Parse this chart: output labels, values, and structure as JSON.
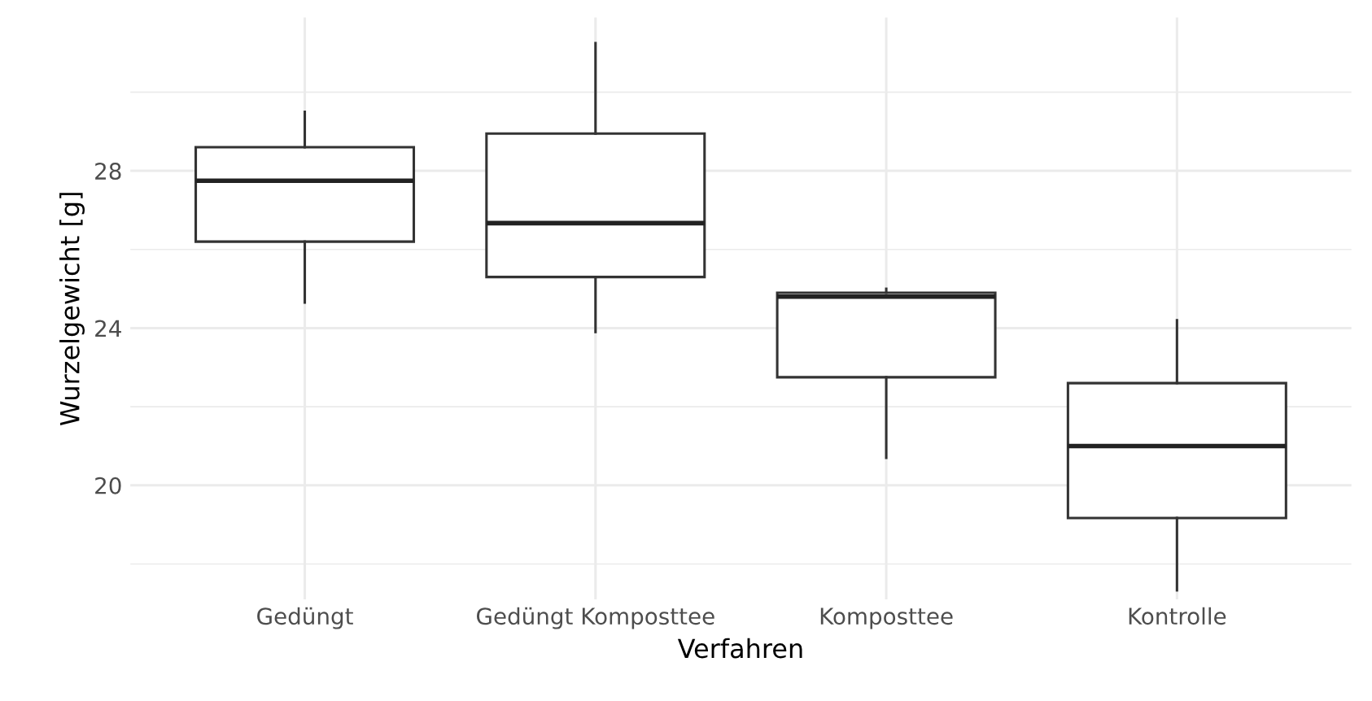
{
  "chart_data": {
    "type": "box",
    "xlabel": "Verfahren",
    "ylabel": "Wurzelgewicht [g]",
    "categories": [
      "Gedüngt",
      "Gedüngt Komposttee",
      "Komposttee",
      "Kontrolle"
    ],
    "boxes": [
      {
        "low": 24.65,
        "q1": 26.2,
        "median": 27.75,
        "q3": 28.6,
        "high": 29.5
      },
      {
        "low": 23.9,
        "q1": 25.3,
        "median": 26.67,
        "q3": 28.95,
        "high": 31.25
      },
      {
        "low": 20.7,
        "q1": 22.75,
        "median": 24.8,
        "q3": 24.9,
        "high": 25.0
      },
      {
        "low": 17.33,
        "q1": 19.17,
        "median": 21.0,
        "q3": 22.6,
        "high": 24.2
      }
    ],
    "ylim": [
      17.1,
      31.9
    ],
    "yticks": [
      20,
      24,
      28
    ],
    "grid": true
  }
}
